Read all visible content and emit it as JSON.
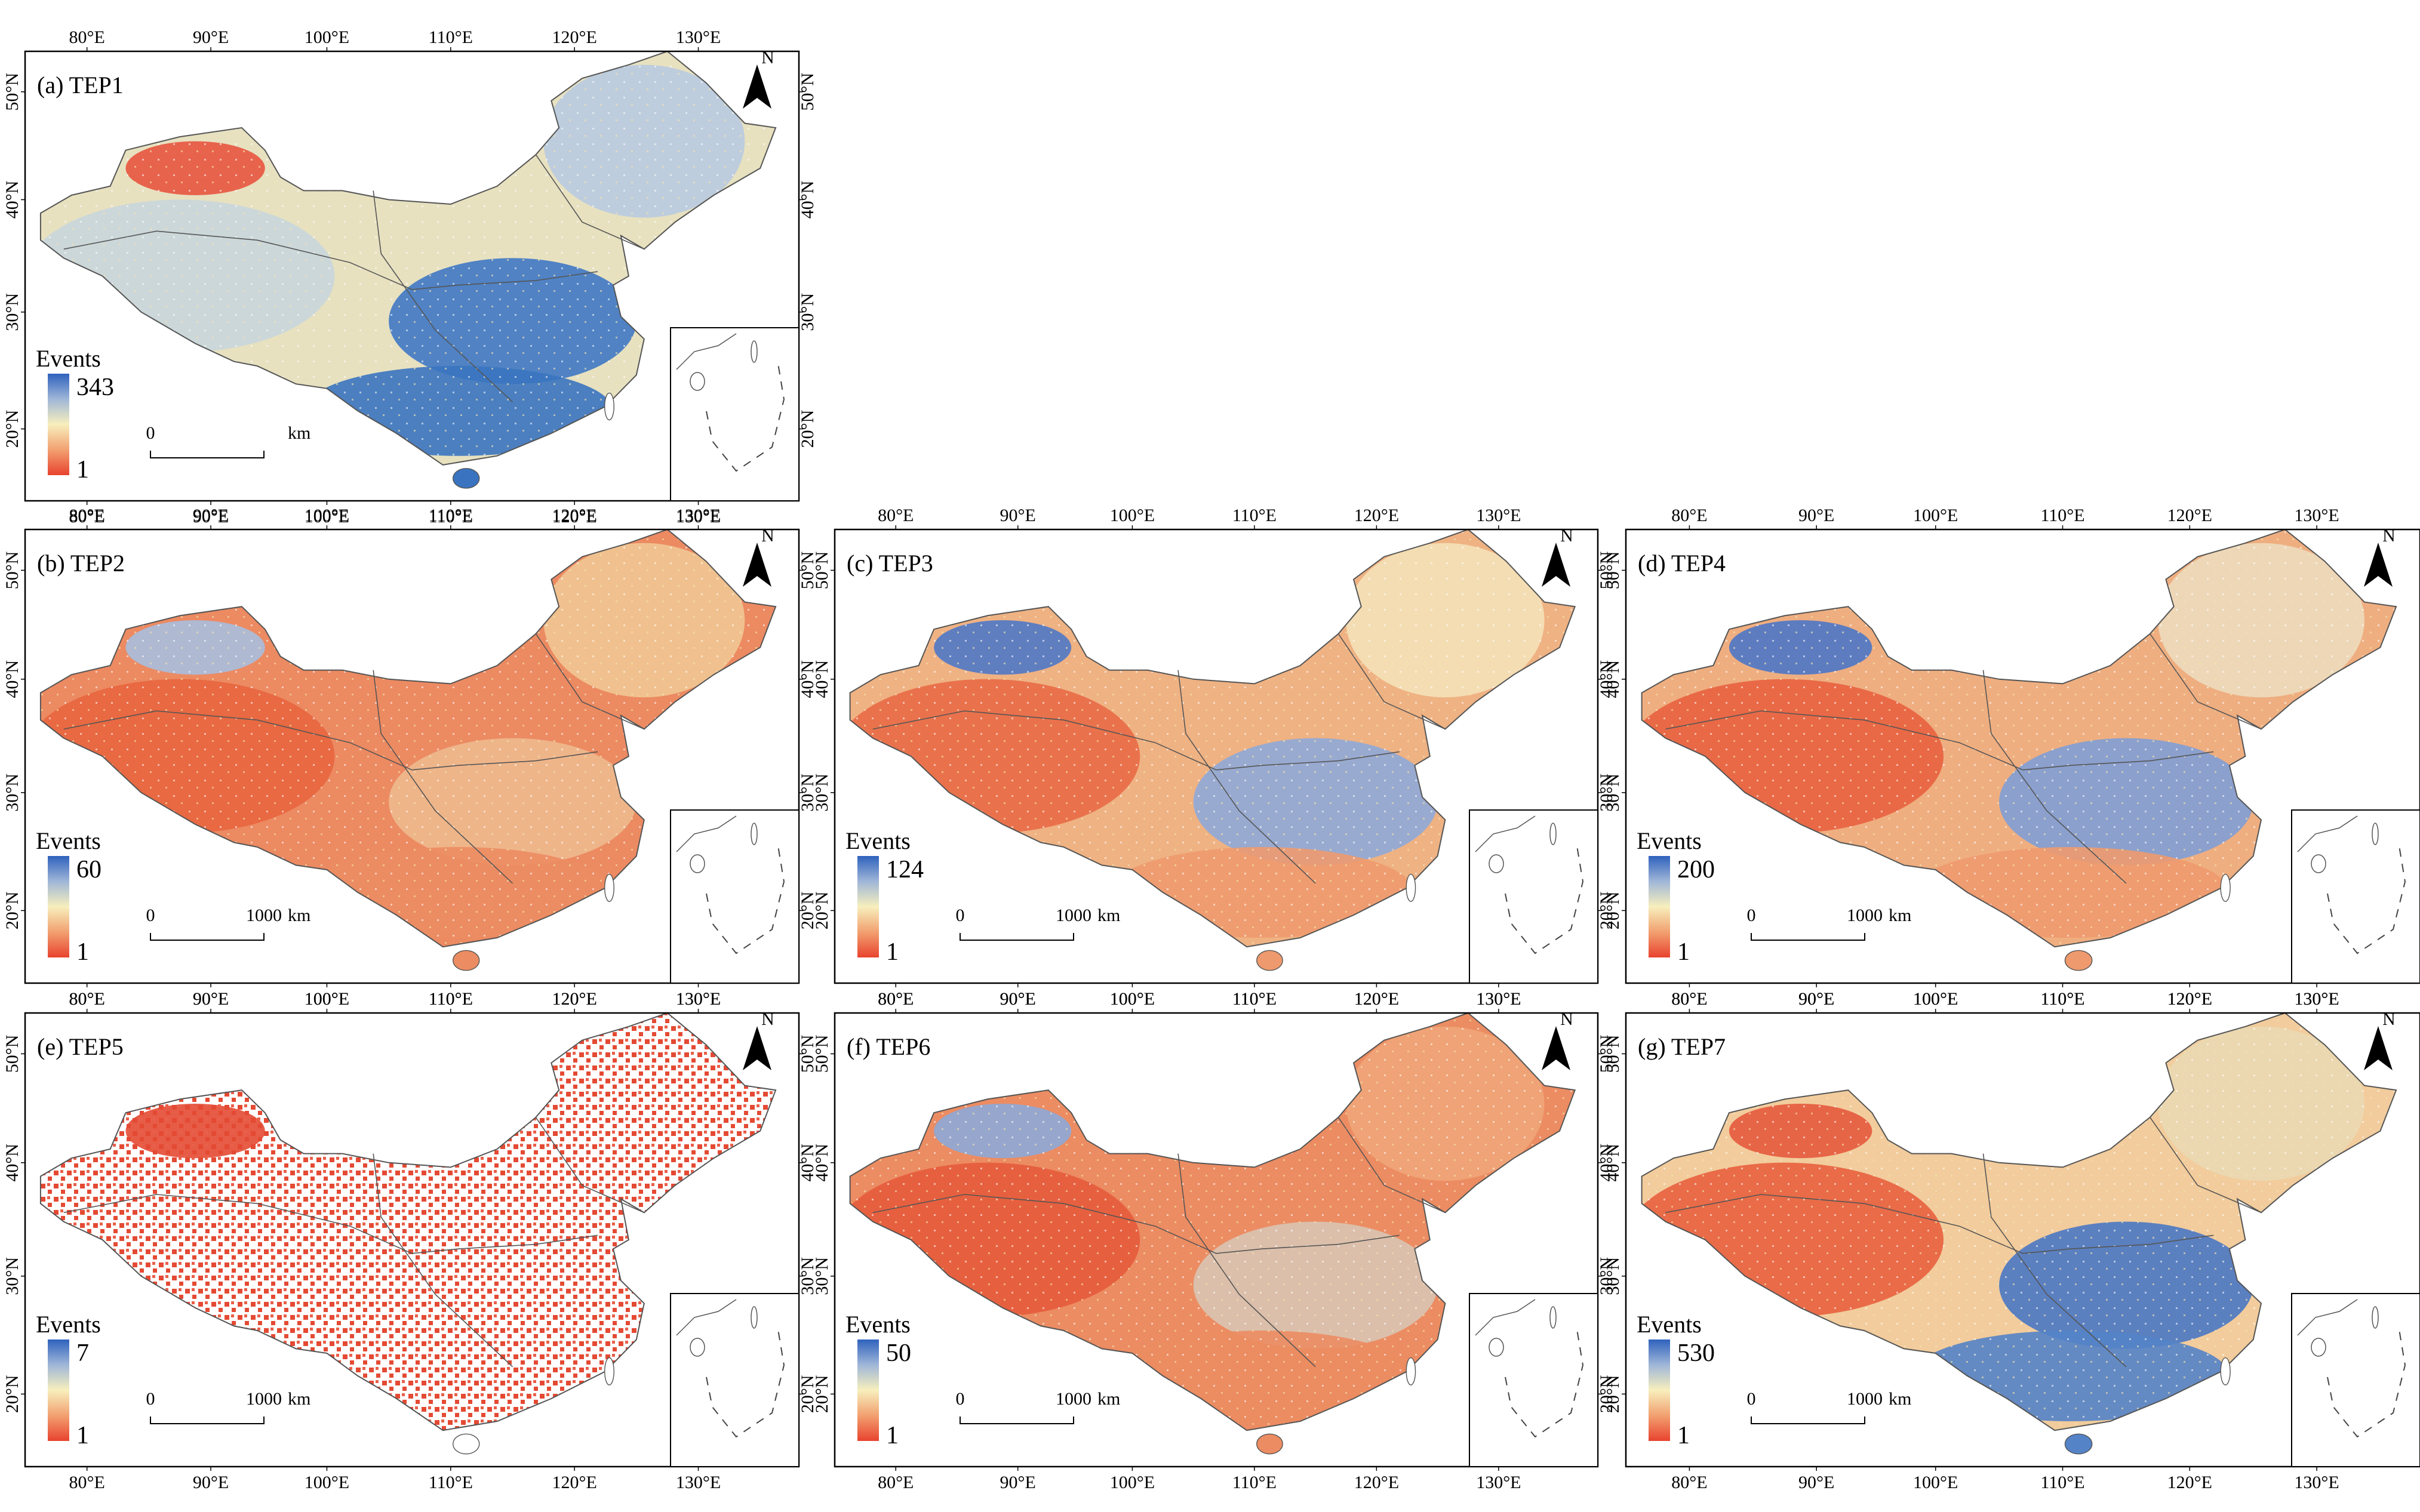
{
  "figure": {
    "legend_title": "Events",
    "scale_zero": "0",
    "scale_unit": "km",
    "north_label": "N",
    "lon_ticks": [
      "80°E",
      "90°E",
      "100°E",
      "110°E",
      "120°E",
      "130°E"
    ],
    "lat_ticks": [
      "50°N",
      "40°N",
      "30°N",
      "20°N"
    ]
  },
  "panels": [
    {
      "id": "tep1",
      "title": "(a) TEP1",
      "legend_max": "343",
      "legend_min": "1",
      "scale_end": "",
      "colors": {
        "base": "#e7e1c0",
        "west": "#c9d6dc",
        "east": "#3f78c4",
        "south": "#3a74c0",
        "north": "#b9cbe0",
        "hot": "#e8553f"
      }
    },
    {
      "id": "tep2",
      "title": "(b) TEP2",
      "legend_max": "60",
      "legend_min": "1",
      "scale_end": "1000",
      "colors": {
        "base": "#ec8a62",
        "west": "#e8653f",
        "east": "#eeb98e",
        "south": "#ec8c63",
        "north": "#f1c694",
        "hot": "#a9bedf"
      }
    },
    {
      "id": "tep3",
      "title": "(c) TEP3",
      "legend_max": "124",
      "legend_min": "1",
      "scale_end": "1000",
      "colors": {
        "base": "#efb283",
        "west": "#e86a46",
        "east": "#8fa9d8",
        "south": "#ee9a6e",
        "north": "#f4e1b8",
        "hot": "#4f78c6"
      }
    },
    {
      "id": "tep4",
      "title": "(d) TEP4",
      "legend_max": "200",
      "legend_min": "1",
      "scale_end": "1000",
      "colors": {
        "base": "#efae80",
        "west": "#e8623f",
        "east": "#7f9ed5",
        "south": "#ee9a6e",
        "north": "#ecdcbc",
        "hot": "#4d77c6"
      }
    },
    {
      "id": "tep5",
      "title": "(e) TEP5",
      "legend_max": "7",
      "legend_min": "1",
      "scale_end": "1000",
      "colors": {
        "base": "#ffffff",
        "west": "#ffffff",
        "east": "#ffffff",
        "south": "#ffffff",
        "north": "#ffffff",
        "hot": "#e44a33"
      }
    },
    {
      "id": "tep6",
      "title": "(f) TEP6",
      "legend_max": "50",
      "legend_min": "1",
      "scale_end": "1000",
      "colors": {
        "base": "#ec8c62",
        "west": "#e55b3c",
        "east": "#d9c4b2",
        "south": "#ec8c62",
        "north": "#f0a579",
        "hot": "#8ea8d8"
      }
    },
    {
      "id": "tep7",
      "title": "(g) TEP7",
      "legend_max": "530",
      "legend_min": "1",
      "scale_end": "1000",
      "colors": {
        "base": "#f2cc9c",
        "west": "#e8613f",
        "east": "#4a78c4",
        "south": "#5483c8",
        "north": "#ead9b2",
        "hot": "#e65a3e"
      }
    }
  ]
}
